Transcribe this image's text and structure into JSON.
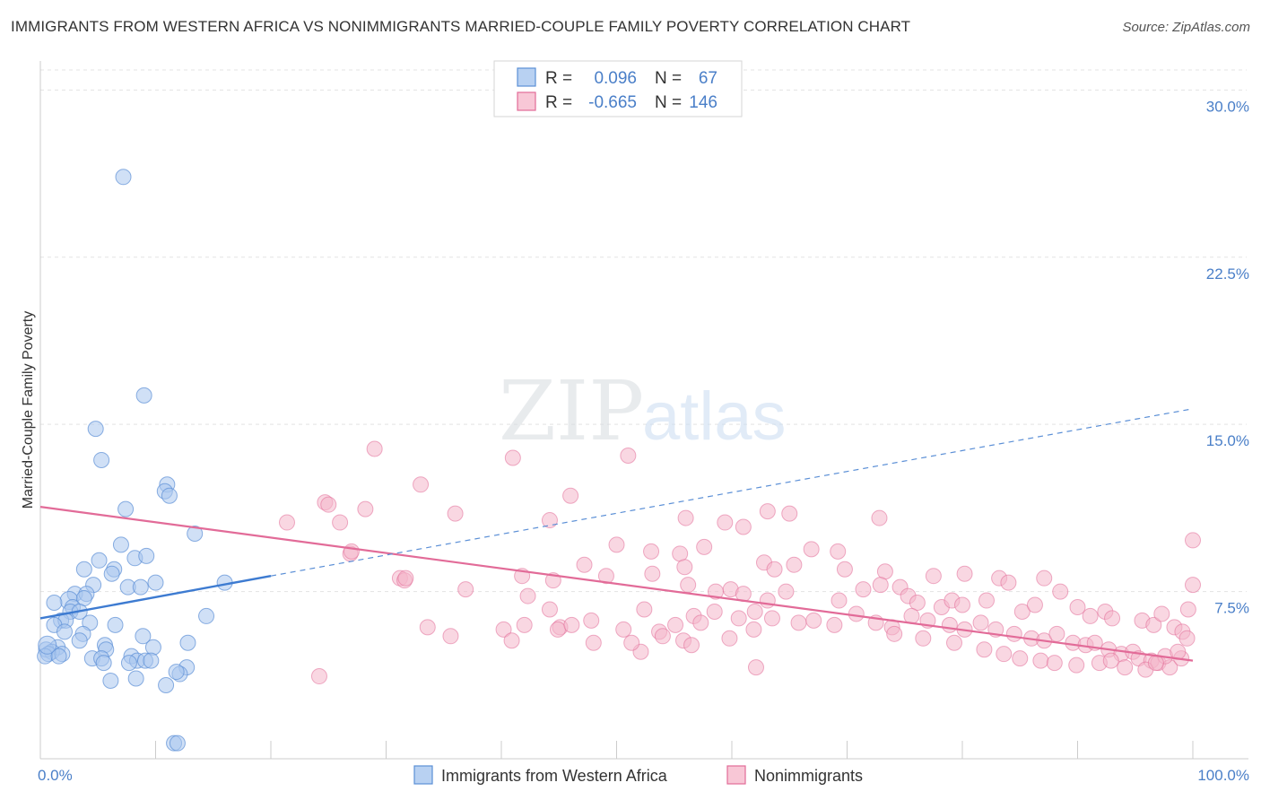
{
  "title": "IMMIGRANTS FROM WESTERN AFRICA VS NONIMMIGRANTS MARRIED-COUPLE FAMILY POVERTY CORRELATION CHART",
  "source": "Source: ZipAtlas.com",
  "watermark": {
    "zip": "ZIP",
    "atlas": "atlas"
  },
  "colors": {
    "blue": "#5b8fd6",
    "blue_fill": "#a9c6ee",
    "pink": "#e26b98",
    "pink_fill": "#f4b6cb",
    "tick": "#4a7fc8"
  },
  "legend": {
    "r_label": "R =",
    "n_label": "N =",
    "rows": [
      {
        "r": "0.096",
        "n": "67"
      },
      {
        "r": "-0.665",
        "n": "146"
      }
    ]
  },
  "chart_data": {
    "type": "scatter",
    "ylabel": "Married-Couple Family Poverty",
    "xlim": [
      0,
      100
    ],
    "ylim": [
      0,
      30.9
    ],
    "x_tick_labels": [
      "0.0%",
      "100.0%"
    ],
    "y_ticks": [
      7.5,
      15.0,
      22.5,
      30.0
    ],
    "y_tick_labels": [
      "7.5%",
      "15.0%",
      "22.5%",
      "30.0%"
    ],
    "grid": true,
    "legend_position": "top-center",
    "series": [
      {
        "name": "Immigrants from Western Africa",
        "color": "#5b8fd6",
        "r": 0.096,
        "n": 67,
        "trend_solid": [
          [
            0,
            6.3
          ],
          [
            20,
            8.2
          ]
        ],
        "trend_dashed": [
          [
            20,
            8.2
          ],
          [
            100,
            15.7
          ]
        ],
        "points": [
          [
            7.2,
            26.1
          ],
          [
            9.0,
            16.3
          ],
          [
            4.8,
            14.8
          ],
          [
            5.3,
            13.4
          ],
          [
            11.0,
            12.3
          ],
          [
            10.8,
            12.0
          ],
          [
            11.2,
            11.8
          ],
          [
            7.4,
            11.2
          ],
          [
            13.4,
            10.1
          ],
          [
            7.0,
            9.6
          ],
          [
            8.2,
            9.0
          ],
          [
            9.2,
            9.1
          ],
          [
            5.1,
            8.9
          ],
          [
            3.8,
            8.5
          ],
          [
            6.4,
            8.5
          ],
          [
            6.2,
            8.3
          ],
          [
            4.6,
            7.8
          ],
          [
            7.6,
            7.7
          ],
          [
            8.7,
            7.7
          ],
          [
            10.0,
            7.9
          ],
          [
            16.0,
            7.9
          ],
          [
            3.0,
            7.4
          ],
          [
            4.0,
            7.4
          ],
          [
            2.5,
            7.1
          ],
          [
            3.8,
            7.2
          ],
          [
            1.2,
            7.0
          ],
          [
            2.8,
            6.8
          ],
          [
            2.6,
            6.6
          ],
          [
            3.4,
            6.6
          ],
          [
            14.4,
            6.4
          ],
          [
            1.8,
            6.2
          ],
          [
            2.2,
            6.2
          ],
          [
            1.2,
            6.0
          ],
          [
            4.3,
            6.1
          ],
          [
            6.5,
            6.0
          ],
          [
            2.1,
            5.7
          ],
          [
            3.7,
            5.6
          ],
          [
            8.9,
            5.5
          ],
          [
            12.8,
            5.2
          ],
          [
            3.4,
            5.3
          ],
          [
            5.6,
            5.1
          ],
          [
            9.8,
            5.0
          ],
          [
            1.5,
            5.0
          ],
          [
            5.7,
            4.9
          ],
          [
            0.5,
            4.9
          ],
          [
            1.0,
            4.8
          ],
          [
            0.7,
            4.7
          ],
          [
            1.9,
            4.7
          ],
          [
            0.4,
            4.6
          ],
          [
            1.6,
            4.6
          ],
          [
            7.9,
            4.6
          ],
          [
            4.5,
            4.5
          ],
          [
            5.3,
            4.5
          ],
          [
            8.4,
            4.4
          ],
          [
            9.1,
            4.4
          ],
          [
            9.6,
            4.4
          ],
          [
            7.7,
            4.3
          ],
          [
            12.7,
            4.1
          ],
          [
            5.5,
            4.3
          ],
          [
            12.1,
            3.8
          ],
          [
            6.1,
            3.5
          ],
          [
            8.3,
            3.6
          ],
          [
            10.9,
            3.3
          ],
          [
            11.8,
            3.9
          ],
          [
            11.6,
            0.7
          ],
          [
            11.9,
            0.7
          ],
          [
            0.6,
            5.1
          ]
        ]
      },
      {
        "name": "Nonimmigrants",
        "color": "#e26b98",
        "r": -0.665,
        "n": 146,
        "trend_solid": [
          [
            0,
            11.3
          ],
          [
            100,
            4.4
          ]
        ],
        "points": [
          [
            29.0,
            13.9
          ],
          [
            33.0,
            12.3
          ],
          [
            41.0,
            13.5
          ],
          [
            46.0,
            11.8
          ],
          [
            51.0,
            13.6
          ],
          [
            24.7,
            11.5
          ],
          [
            25.0,
            11.4
          ],
          [
            28.2,
            11.2
          ],
          [
            21.4,
            10.6
          ],
          [
            26.0,
            10.6
          ],
          [
            36.0,
            11.0
          ],
          [
            44.2,
            10.7
          ],
          [
            56.0,
            10.8
          ],
          [
            59.4,
            10.6
          ],
          [
            63.1,
            11.1
          ],
          [
            65.0,
            11.0
          ],
          [
            72.8,
            10.8
          ],
          [
            61.0,
            10.4
          ],
          [
            50.0,
            9.6
          ],
          [
            53.0,
            9.3
          ],
          [
            55.5,
            9.2
          ],
          [
            57.6,
            9.5
          ],
          [
            66.9,
            9.4
          ],
          [
            69.2,
            9.3
          ],
          [
            26.9,
            9.2
          ],
          [
            27.0,
            9.3
          ],
          [
            47.2,
            8.7
          ],
          [
            53.1,
            8.3
          ],
          [
            55.9,
            8.6
          ],
          [
            62.8,
            8.8
          ],
          [
            63.7,
            8.5
          ],
          [
            65.4,
            8.7
          ],
          [
            69.8,
            8.5
          ],
          [
            73.3,
            8.4
          ],
          [
            77.5,
            8.2
          ],
          [
            80.2,
            8.3
          ],
          [
            83.2,
            8.1
          ],
          [
            84.0,
            7.9
          ],
          [
            87.1,
            8.1
          ],
          [
            31.2,
            8.1
          ],
          [
            31.6,
            8.0
          ],
          [
            44.5,
            8.0
          ],
          [
            49.1,
            8.2
          ],
          [
            56.2,
            7.8
          ],
          [
            58.6,
            7.5
          ],
          [
            59.9,
            7.6
          ],
          [
            61.0,
            7.4
          ],
          [
            63.1,
            7.1
          ],
          [
            64.7,
            7.5
          ],
          [
            69.3,
            7.1
          ],
          [
            71.4,
            7.6
          ],
          [
            72.9,
            7.8
          ],
          [
            74.6,
            7.7
          ],
          [
            75.3,
            7.3
          ],
          [
            76.1,
            7.0
          ],
          [
            78.2,
            6.8
          ],
          [
            79.1,
            7.1
          ],
          [
            80.0,
            6.9
          ],
          [
            82.1,
            7.1
          ],
          [
            85.2,
            6.6
          ],
          [
            86.3,
            6.9
          ],
          [
            88.5,
            7.5
          ],
          [
            90.0,
            6.8
          ],
          [
            91.1,
            6.4
          ],
          [
            92.4,
            6.6
          ],
          [
            93.0,
            6.3
          ],
          [
            95.6,
            6.2
          ],
          [
            96.6,
            6.0
          ],
          [
            98.4,
            5.9
          ],
          [
            99.1,
            5.7
          ],
          [
            47.8,
            6.2
          ],
          [
            53.7,
            5.7
          ],
          [
            55.1,
            6.0
          ],
          [
            56.7,
            6.4
          ],
          [
            58.5,
            6.6
          ],
          [
            60.6,
            6.3
          ],
          [
            62.0,
            6.6
          ],
          [
            63.5,
            6.3
          ],
          [
            65.8,
            6.1
          ],
          [
            67.1,
            6.2
          ],
          [
            68.9,
            6.0
          ],
          [
            70.8,
            6.5
          ],
          [
            72.5,
            6.1
          ],
          [
            73.9,
            5.9
          ],
          [
            75.6,
            6.4
          ],
          [
            77.0,
            6.2
          ],
          [
            78.9,
            6.0
          ],
          [
            80.2,
            5.8
          ],
          [
            81.6,
            6.1
          ],
          [
            82.9,
            5.8
          ],
          [
            84.5,
            5.6
          ],
          [
            86.0,
            5.4
          ],
          [
            87.1,
            5.3
          ],
          [
            88.2,
            5.6
          ],
          [
            89.6,
            5.2
          ],
          [
            90.7,
            5.1
          ],
          [
            91.5,
            5.2
          ],
          [
            92.7,
            4.9
          ],
          [
            93.8,
            4.7
          ],
          [
            94.8,
            4.8
          ],
          [
            95.3,
            4.5
          ],
          [
            96.4,
            4.4
          ],
          [
            97.0,
            4.3
          ],
          [
            98.0,
            4.1
          ],
          [
            99.0,
            4.5
          ],
          [
            40.2,
            5.8
          ],
          [
            42.0,
            6.0
          ],
          [
            45.1,
            5.9
          ],
          [
            40.9,
            5.3
          ],
          [
            48.0,
            5.2
          ],
          [
            50.6,
            5.8
          ],
          [
            57.3,
            6.1
          ],
          [
            59.8,
            5.4
          ],
          [
            61.9,
            5.8
          ],
          [
            52.1,
            4.8
          ],
          [
            62.1,
            4.1
          ],
          [
            31.7,
            8.1
          ],
          [
            36.9,
            7.6
          ],
          [
            41.8,
            8.2
          ],
          [
            42.3,
            7.3
          ],
          [
            44.2,
            6.7
          ],
          [
            44.9,
            5.8
          ],
          [
            46.1,
            6.0
          ],
          [
            24.2,
            3.7
          ],
          [
            33.6,
            5.9
          ],
          [
            35.6,
            5.5
          ],
          [
            51.3,
            5.2
          ],
          [
            52.4,
            6.7
          ],
          [
            54.0,
            5.5
          ],
          [
            55.8,
            5.3
          ],
          [
            56.5,
            5.1
          ],
          [
            74.1,
            5.6
          ],
          [
            76.6,
            5.4
          ],
          [
            79.3,
            5.2
          ],
          [
            81.9,
            4.9
          ],
          [
            83.6,
            4.7
          ],
          [
            85.0,
            4.5
          ],
          [
            86.8,
            4.4
          ],
          [
            88.0,
            4.3
          ],
          [
            89.9,
            4.2
          ],
          [
            91.9,
            4.3
          ],
          [
            92.9,
            4.4
          ],
          [
            94.1,
            4.1
          ],
          [
            95.9,
            4.0
          ],
          [
            97.6,
            4.6
          ],
          [
            99.5,
            5.4
          ],
          [
            96.8,
            4.3
          ],
          [
            98.7,
            4.8
          ],
          [
            100.0,
            9.8
          ],
          [
            100.0,
            7.8
          ],
          [
            97.3,
            6.5
          ],
          [
            99.6,
            6.7
          ]
        ]
      }
    ]
  },
  "bottom_legend": [
    "Immigrants from Western Africa",
    "Nonimmigrants"
  ]
}
